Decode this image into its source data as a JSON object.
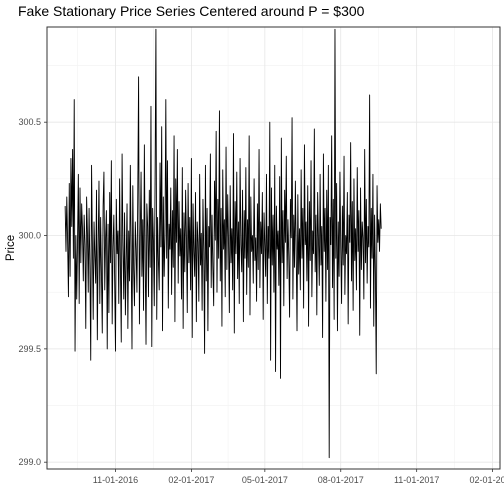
{
  "chart_data": {
    "type": "line",
    "title": "Fake Stationary Price Series Centered around P = $300",
    "xlabel": "",
    "ylabel": "Price",
    "ylim": [
      298.97,
      300.92
    ],
    "xlim": [
      "2016-08-10",
      "2018-02-10"
    ],
    "y_ticks": [
      299.0,
      299.5,
      300.0,
      300.5
    ],
    "y_tick_labels": [
      "299.0",
      "299.5",
      "300.0",
      "300.5"
    ],
    "x_ticks": [
      "2016-11-01",
      "2017-02-01",
      "2017-05-01",
      "2017-08-01",
      "2017-11-01",
      "2018-02-01"
    ],
    "x_tick_labels": [
      "11-01-2016",
      "02-01-2017",
      "05-01-2017",
      "08-01-2017",
      "11-01-2017",
      "02-01-2018"
    ],
    "grid": true,
    "legend": "none",
    "series": [
      {
        "color": "#000000",
        "start": "2016-09-01",
        "values": [
          300.13,
          299.93,
          300.17,
          299.97,
          299.73,
          300.23,
          299.82,
          300.34,
          300.04,
          300.38,
          299.9,
          300.6,
          299.49,
          300.0,
          299.72,
          299.97,
          300.27,
          299.7,
          300.21,
          299.88,
          300.14,
          300.03,
          299.8,
          300.09,
          299.96,
          299.59,
          300.17,
          300.01,
          299.75,
          300.12,
          299.86,
          299.45,
          300.31,
          299.97,
          299.63,
          300.06,
          299.91,
          299.79,
          300.2,
          299.54,
          299.95,
          300.24,
          299.7,
          300.08,
          299.83,
          299.57,
          300.13,
          300.28,
          299.76,
          299.99,
          300.11,
          299.5,
          300.05,
          299.66,
          300.19,
          299.88,
          300.33,
          299.61,
          299.95,
          300.09,
          299.8,
          299.49,
          300.16,
          299.92,
          300.02,
          299.7,
          300.25,
          299.86,
          299.53,
          300.36,
          299.97,
          299.72,
          300.1,
          299.65,
          299.88,
          300.14,
          299.59,
          300.02,
          299.8,
          300.31,
          299.93,
          299.5,
          300.22,
          299.85,
          299.69,
          300.06,
          299.94,
          299.75,
          300.18,
          300.7,
          299.61,
          299.99,
          300.28,
          299.82,
          300.07,
          299.67,
          300.4,
          299.9,
          299.52,
          300.14,
          300.04,
          299.73,
          300.2,
          299.86,
          300.57,
          299.51,
          300.12,
          299.98,
          299.69,
          300.26,
          300.91,
          299.63,
          300.08,
          299.89,
          299.76,
          300.32,
          299.95,
          300.48,
          299.58,
          300.17,
          299.82,
          300.0,
          300.6,
          299.9,
          300.33,
          299.68,
          300.05,
          299.94,
          300.21,
          299.74,
          300.11,
          299.86,
          300.44,
          299.62,
          300.25,
          299.97,
          300.38,
          299.79,
          300.15,
          299.91,
          300.03,
          299.72,
          300.3,
          299.59,
          300.1,
          299.84,
          300.2,
          299.99,
          299.66,
          300.23,
          299.88,
          300.08,
          299.76,
          300.34,
          299.55,
          300.14,
          299.93,
          299.82,
          300.19,
          299.62,
          300.06,
          299.97,
          299.71,
          300.27,
          299.87,
          300.01,
          299.67,
          300.16,
          299.92,
          299.48,
          300.31,
          299.8,
          300.12,
          299.58,
          300.04,
          299.95,
          300.36,
          299.77,
          300.09,
          299.86,
          299.69,
          300.24,
          299.98,
          300.46,
          299.75,
          300.16,
          299.9,
          300.55,
          299.8,
          300.12,
          299.6,
          300.29,
          299.94,
          300.07,
          299.73,
          300.39,
          299.85,
          300.18,
          299.97,
          299.66,
          300.22,
          299.88,
          300.03,
          299.76,
          300.45,
          299.57,
          300.15,
          299.92,
          300.28,
          299.81,
          300.06,
          299.7,
          300.34,
          299.96,
          299.84,
          300.2,
          299.62,
          300.11,
          299.9,
          300.3,
          299.74,
          300.07,
          299.86,
          300.44,
          299.65,
          300.17,
          299.93,
          300.0,
          299.79,
          300.25,
          299.89,
          299.99,
          299.71,
          300.14,
          299.85,
          300.38,
          299.77,
          300.06,
          299.92,
          300.19,
          299.63,
          300.1,
          299.96,
          299.82,
          300.27,
          299.7,
          300.04,
          299.9,
          300.5,
          299.45,
          300.21,
          299.87,
          300.09,
          299.75,
          300.31,
          299.4,
          300.13,
          299.94,
          300.02,
          299.78,
          300.26,
          299.37,
          300.43,
          299.88,
          300.11,
          299.69,
          300.2,
          299.97,
          300.35,
          299.81,
          300.07,
          299.91,
          299.64,
          300.16,
          299.99,
          300.52,
          299.72,
          300.09,
          299.86,
          300.24,
          299.94,
          299.58,
          300.18,
          299.83,
          300.03,
          299.76,
          300.29,
          299.9,
          300.12,
          299.68,
          300.4,
          299.96,
          300.06,
          299.8,
          300.22,
          299.6,
          300.15,
          299.89,
          300.33,
          299.73,
          300.02,
          299.92,
          300.47,
          299.84,
          300.09,
          299.65,
          300.19,
          299.98,
          299.78,
          300.27,
          299.87,
          300.04,
          299.55,
          300.36,
          299.93,
          300.12,
          299.71,
          300.2,
          299.85,
          300.31,
          299.02,
          300.08,
          299.96,
          300.44,
          299.77,
          300.16,
          299.63,
          300.91,
          299.9,
          300.23,
          299.58,
          300.06,
          299.82,
          300.28,
          299.95,
          299.7,
          300.13,
          299.87,
          300.35,
          299.74,
          300.0,
          299.92,
          300.19,
          299.61,
          300.09,
          299.97,
          300.41,
          299.8,
          300.15,
          299.67,
          300.25,
          299.89,
          300.03,
          299.76,
          300.3,
          299.93,
          300.11,
          299.56,
          300.21,
          299.85,
          300.06,
          299.99,
          299.72,
          300.38,
          299.88,
          300.16,
          299.79,
          300.04,
          299.95,
          300.62,
          299.68,
          300.12,
          299.9,
          300.27,
          299.6,
          300.09,
          299.84,
          299.39,
          300.22,
          299.97,
          300.07,
          299.93,
          300.14,
          300.03
        ]
      }
    ]
  }
}
